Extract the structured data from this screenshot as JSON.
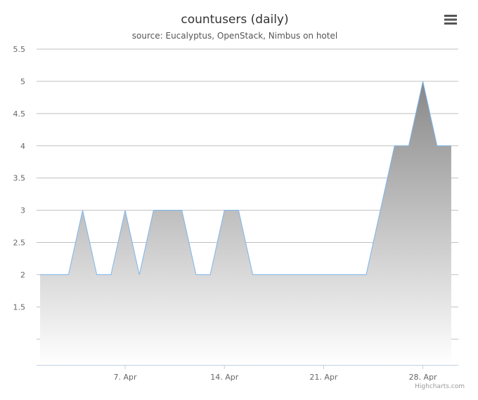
{
  "chart_data": {
    "type": "area",
    "title": "countusers (daily)",
    "subtitle": "source: Eucalyptus, OpenStack, Nimbus on hotel",
    "credits": "Highcharts.com",
    "x": [
      1,
      2,
      3,
      4,
      5,
      6,
      7,
      8,
      9,
      10,
      11,
      12,
      13,
      14,
      15,
      16,
      17,
      18,
      19,
      20,
      21,
      22,
      23,
      24,
      25,
      26,
      27,
      28,
      29,
      30
    ],
    "series": [
      {
        "color": "#7cb5ec",
        "values": [
          2,
          2,
          2,
          3,
          2,
          2,
          3,
          2,
          3,
          3,
          3,
          2,
          2,
          3,
          3,
          2,
          2,
          2,
          2,
          2,
          2,
          2,
          2,
          2,
          3,
          4,
          4,
          5,
          4,
          4
        ]
      }
    ],
    "xlim": [
      0.75,
      30.5
    ],
    "xticks": [
      {
        "value": 7,
        "label": "7. Apr"
      },
      {
        "value": 14,
        "label": "14. Apr"
      },
      {
        "value": 21,
        "label": "21. Apr"
      },
      {
        "value": 28,
        "label": "28. Apr"
      }
    ],
    "ylim": [
      0.6,
      5.5
    ],
    "yticks": [
      1.5,
      2,
      2.5,
      3,
      3.5,
      4,
      4.5,
      5,
      5.5
    ],
    "unlabeled_yticks": [
      1
    ],
    "grid": true
  }
}
